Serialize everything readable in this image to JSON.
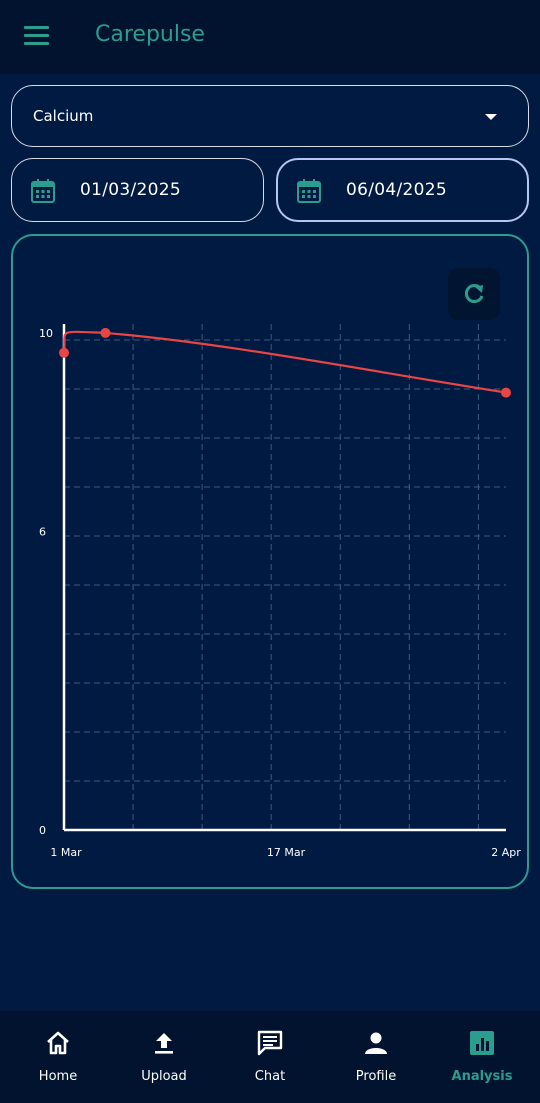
{
  "app": {
    "title": "Carepulse"
  },
  "selector": {
    "value": "Calcium"
  },
  "dates": {
    "start": "01/03/2025",
    "end": "06/04/2025"
  },
  "chart_data": {
    "type": "line",
    "x": [
      "2025-03-01",
      "2025-03-04",
      "2025-04-02"
    ],
    "series": [
      {
        "values": [
          9.6,
          10.0,
          8.8
        ],
        "color": "#e84545"
      }
    ],
    "xticks": [
      "1 Mar",
      "17 Mar",
      "2 Apr"
    ],
    "yticks": [
      "0",
      "6",
      "10"
    ],
    "ylim": [
      0,
      10.3
    ],
    "grid": true,
    "title": "",
    "xlabel": "",
    "ylabel": ""
  },
  "nav": {
    "items": [
      {
        "label": "Home",
        "icon": "home-icon"
      },
      {
        "label": "Upload",
        "icon": "upload-icon"
      },
      {
        "label": "Chat",
        "icon": "chat-icon"
      },
      {
        "label": "Profile",
        "icon": "profile-icon"
      },
      {
        "label": "Analysis",
        "icon": "analysis-icon",
        "active": true
      }
    ]
  },
  "colors": {
    "accent": "#2a9d8f",
    "background": "#011a42",
    "line": "#e84545"
  }
}
